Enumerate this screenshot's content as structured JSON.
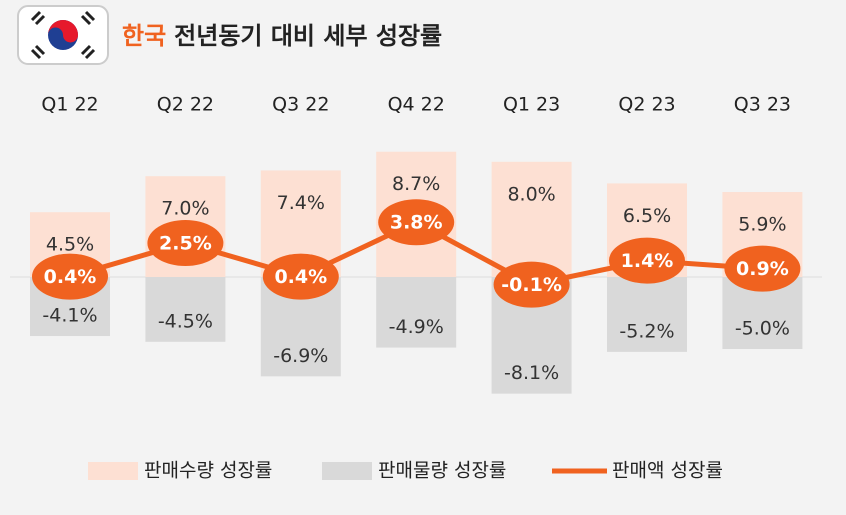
{
  "chart_data": {
    "type": "bar-line",
    "title_highlight": "한국",
    "title": "전년동기 대비 세부 성장률",
    "categories": [
      "Q1 22",
      "Q2 22",
      "Q3 22",
      "Q4 22",
      "Q1 23",
      "Q2 23",
      "Q3 23"
    ],
    "series": [
      {
        "name": "판매수량 성장률",
        "color": "#fde0d3",
        "values": [
          4.5,
          7.0,
          7.4,
          8.7,
          8.0,
          6.5,
          5.9
        ],
        "value_labels": [
          "4.5%",
          "7.0%",
          "7.4%",
          "8.7%",
          "8.0%",
          "6.5%",
          "5.9%"
        ]
      },
      {
        "name": "판매물량 성장률",
        "color": "#d9d9d9",
        "values": [
          -4.1,
          -4.5,
          -6.9,
          -4.9,
          -8.1,
          -5.2,
          -5.0
        ],
        "value_labels": [
          "-4.1%",
          "-4.5%",
          "-6.9%",
          "-4.9%",
          "-8.1%",
          "-5.2%",
          "-5.0%"
        ]
      },
      {
        "name": "판매액 성장률",
        "color": "#f0621f",
        "values": [
          0.4,
          2.5,
          0.4,
          3.8,
          -0.1,
          1.4,
          0.9
        ],
        "value_labels": [
          "0.4%",
          "2.5%",
          "0.4%",
          "3.8%",
          "-0.1%",
          "1.4%",
          "0.9%"
        ]
      }
    ]
  }
}
